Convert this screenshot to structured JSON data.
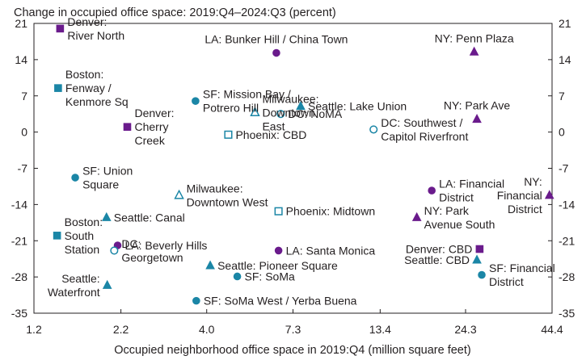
{
  "chart_data": {
    "type": "scatter",
    "title": "Change in occupied office space: 2019:Q4–2024:Q3 (percent)",
    "xlabel": "Occupied neighborhood office space in 2019:Q4 (million square feet)",
    "ylabel": "",
    "x_scale": "log",
    "xlim": [
      1.2,
      44.4
    ],
    "ylim": [
      -35,
      21
    ],
    "x_ticks": [
      "1.2",
      "2.2",
      "4.0",
      "7.3",
      "13.4",
      "24.3",
      "44.4"
    ],
    "x_tick_values": [
      1.2,
      2.2,
      4.0,
      7.3,
      13.4,
      24.3,
      44.4
    ],
    "y_ticks": [
      "21",
      "14",
      "7",
      "0",
      "-7",
      "-14",
      "-21",
      "-28",
      "-35"
    ],
    "y_tick_values": [
      21,
      14,
      7,
      0,
      -7,
      -14,
      -21,
      -28,
      -35
    ],
    "grid": false,
    "colors": {
      "teal": "#1b86a6",
      "purple": "#6a1b8c"
    },
    "points": [
      {
        "label": [
          "Denver:",
          "River North"
        ],
        "x": 1.44,
        "y": 20.0,
        "shape": "square",
        "color": "purple",
        "fill": true,
        "anchor": "start"
      },
      {
        "label": [
          "LA: Bunker Hill / China Town"
        ],
        "x": 6.5,
        "y": 15.3,
        "shape": "circle",
        "color": "purple",
        "fill": true,
        "anchor": "middle"
      },
      {
        "label": [
          "NY: Penn Plaza"
        ],
        "x": 25.8,
        "y": 15.5,
        "shape": "triangle",
        "color": "purple",
        "fill": true,
        "anchor": "middle"
      },
      {
        "label": [
          "Boston:",
          "Fenway /",
          "Kenmore Sq"
        ],
        "x": 1.42,
        "y": 8.5,
        "shape": "square",
        "color": "teal",
        "fill": true,
        "anchor": "start"
      },
      {
        "label": [
          "SF: Mission Bay /",
          "Potrero Hill"
        ],
        "x": 3.7,
        "y": 6.0,
        "shape": "circle",
        "color": "teal",
        "fill": true,
        "anchor": "start"
      },
      {
        "label": [
          "Milwaukee:",
          "Downtown",
          "East"
        ],
        "x": 5.6,
        "y": 3.8,
        "shape": "triangle",
        "color": "teal",
        "fill": false,
        "anchor": "start"
      },
      {
        "label": [
          "Seattle: Lake Union"
        ],
        "x": 7.7,
        "y": 5.0,
        "shape": "triangle",
        "color": "teal",
        "fill": true,
        "anchor": "start"
      },
      {
        "label": [
          "DC: NoMA"
        ],
        "x": 6.7,
        "y": 3.5,
        "shape": "circle",
        "color": "teal",
        "fill": false,
        "anchor": "start"
      },
      {
        "label": [
          "NY: Park Ave"
        ],
        "x": 26.3,
        "y": 2.5,
        "shape": "triangle",
        "color": "purple",
        "fill": true,
        "anchor": "middle"
      },
      {
        "label": [
          "Denver:",
          "Cherry",
          "Creek"
        ],
        "x": 2.3,
        "y": 1.0,
        "shape": "square",
        "color": "purple",
        "fill": true,
        "anchor": "start"
      },
      {
        "label": [
          "DC: Southwest /",
          "Capitol Riverfront"
        ],
        "x": 12.8,
        "y": 0.5,
        "shape": "circle",
        "color": "teal",
        "fill": false,
        "anchor": "start"
      },
      {
        "label": [
          "Phoenix: CBD"
        ],
        "x": 4.65,
        "y": -0.5,
        "shape": "square",
        "color": "teal",
        "fill": false,
        "anchor": "start"
      },
      {
        "label": [
          "SF: Union",
          "Square"
        ],
        "x": 1.6,
        "y": -8.8,
        "shape": "circle",
        "color": "teal",
        "fill": true,
        "anchor": "start"
      },
      {
        "label": [
          "LA: Financial",
          "District"
        ],
        "x": 19.2,
        "y": -11.3,
        "shape": "circle",
        "color": "purple",
        "fill": true,
        "anchor": "start"
      },
      {
        "label": [
          "NY:",
          "Financial",
          "District"
        ],
        "x": 43.6,
        "y": -12.2,
        "shape": "triangle",
        "color": "purple",
        "fill": true,
        "anchor": "end"
      },
      {
        "label": [
          "Milwaukee:",
          "Downtown West"
        ],
        "x": 3.3,
        "y": -12.2,
        "shape": "triangle",
        "color": "teal",
        "fill": false,
        "anchor": "start"
      },
      {
        "label": [
          "Phoenix: Midtown"
        ],
        "x": 6.6,
        "y": -15.3,
        "shape": "square",
        "color": "teal",
        "fill": false,
        "anchor": "start"
      },
      {
        "label": [
          "Seattle: Canal"
        ],
        "x": 1.99,
        "y": -16.5,
        "shape": "triangle",
        "color": "teal",
        "fill": true,
        "anchor": "start"
      },
      {
        "label": [
          "NY: Park",
          "Avenue South"
        ],
        "x": 17.3,
        "y": -16.5,
        "shape": "triangle",
        "color": "purple",
        "fill": true,
        "anchor": "start"
      },
      {
        "label": [
          "Boston:",
          "South",
          "Station"
        ],
        "x": 1.41,
        "y": -20.0,
        "shape": "square",
        "color": "teal",
        "fill": true,
        "anchor": "start"
      },
      {
        "label": [
          "LA: Beverly Hills"
        ],
        "x": 2.15,
        "y": -21.9,
        "shape": "circle",
        "color": "purple",
        "fill": true,
        "anchor": "start"
      },
      {
        "label": [
          "DC:",
          "Georgetown"
        ],
        "x": 2.1,
        "y": -22.9,
        "shape": "circle",
        "color": "teal",
        "fill": false,
        "anchor": "start"
      },
      {
        "label": [
          "LA: Santa Monica"
        ],
        "x": 6.6,
        "y": -22.9,
        "shape": "circle",
        "color": "purple",
        "fill": true,
        "anchor": "start"
      },
      {
        "label": [
          "Denver: CBD"
        ],
        "x": 26.8,
        "y": -22.6,
        "shape": "square",
        "color": "purple",
        "fill": true,
        "anchor": "end"
      },
      {
        "label": [
          "Seattle: CBD"
        ],
        "x": 26.3,
        "y": -24.7,
        "shape": "triangle",
        "color": "teal",
        "fill": true,
        "anchor": "end"
      },
      {
        "label": [
          "Seattle: Pioneer Square"
        ],
        "x": 4.1,
        "y": -25.8,
        "shape": "triangle",
        "color": "teal",
        "fill": true,
        "anchor": "start"
      },
      {
        "label": [
          "SF: SoMa"
        ],
        "x": 4.95,
        "y": -27.9,
        "shape": "circle",
        "color": "teal",
        "fill": true,
        "anchor": "start"
      },
      {
        "label": [
          "SF: Financial",
          "District"
        ],
        "x": 27.2,
        "y": -27.6,
        "shape": "circle",
        "color": "teal",
        "fill": true,
        "anchor": "start"
      },
      {
        "label": [
          "Seattle:",
          "Waterfront"
        ],
        "x": 2.0,
        "y": -29.6,
        "shape": "triangle",
        "color": "teal",
        "fill": true,
        "anchor": "end"
      },
      {
        "label": [
          "SF: SoMa West / Yerba Buena"
        ],
        "x": 3.72,
        "y": -32.6,
        "shape": "circle",
        "color": "teal",
        "fill": true,
        "anchor": "start"
      }
    ]
  }
}
